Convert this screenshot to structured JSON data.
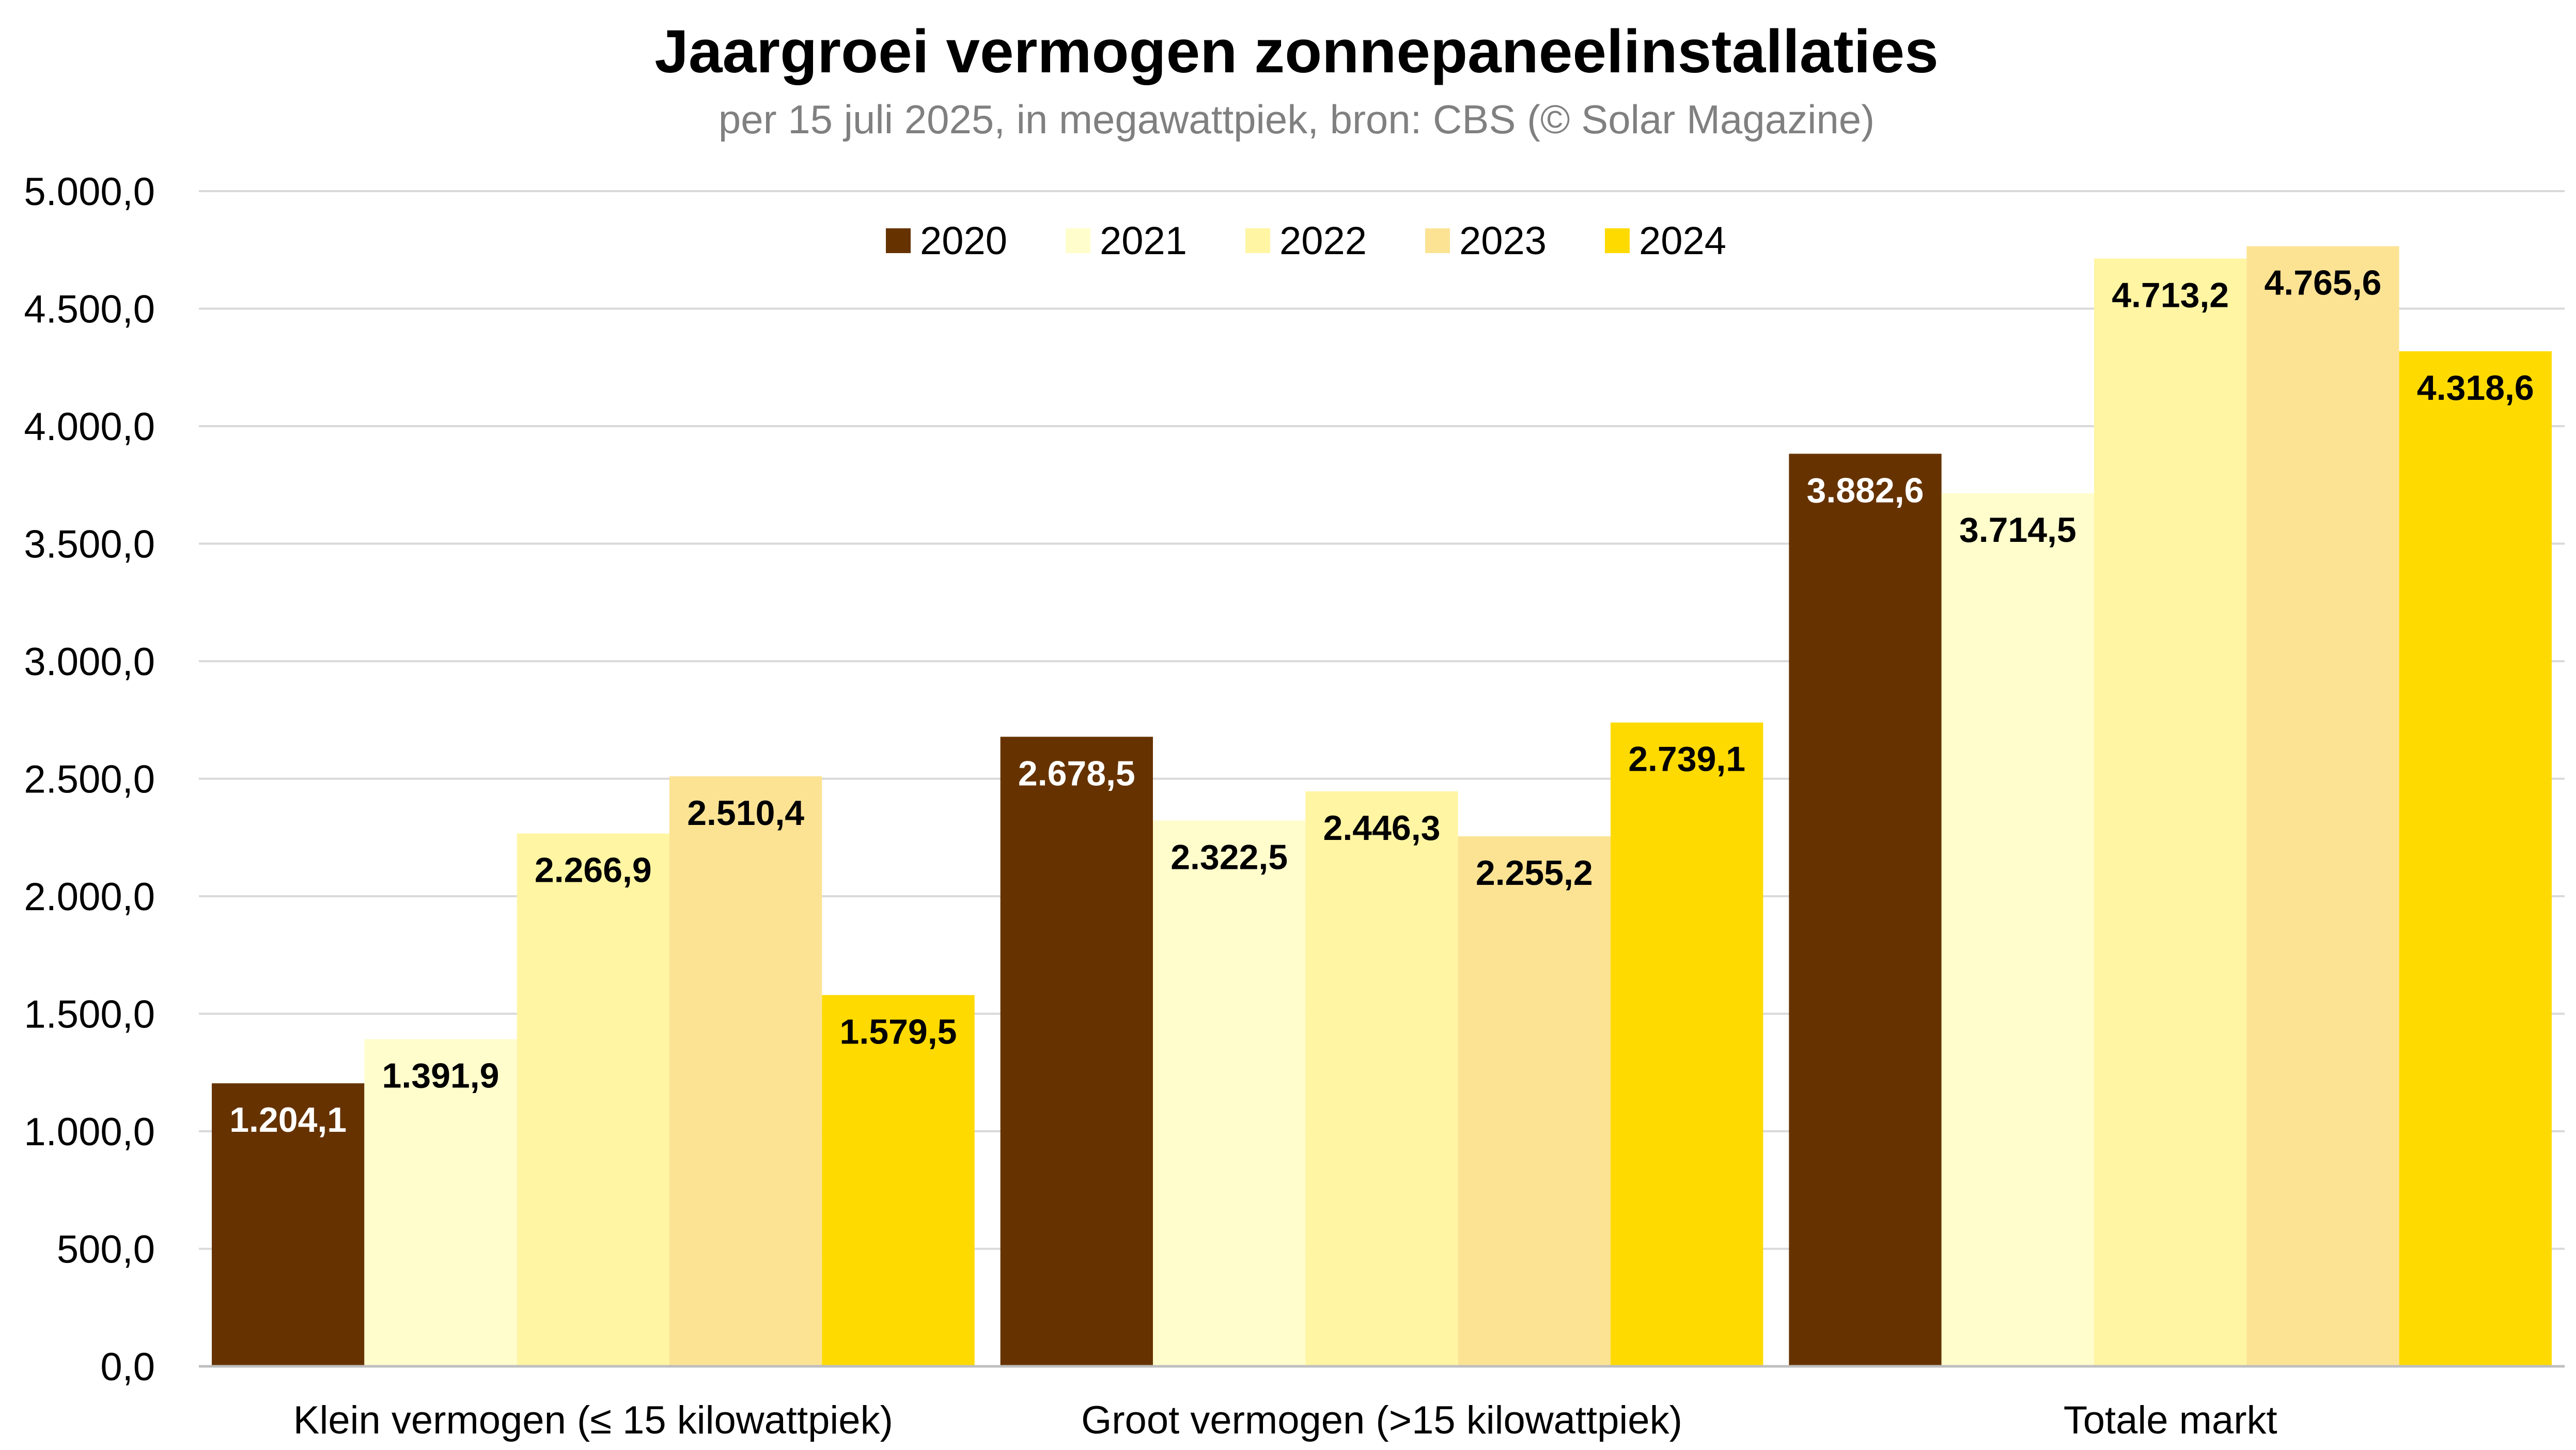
{
  "chart_data": {
    "type": "bar",
    "title": "Jaargroei vermogen zonnepaneelinstallaties",
    "subtitle": "per 15 juli 2025, in megawattpiek, bron: CBS (© Solar Magazine)",
    "categories": [
      "Klein vermogen (≤ 15 kilowattpiek)",
      "Groot vermogen (>15 kilowattpiek)",
      "Totale markt"
    ],
    "ylim": [
      0,
      5000
    ],
    "yticks": [
      0,
      500,
      1000,
      1500,
      2000,
      2500,
      3000,
      3500,
      4000,
      4500,
      5000
    ],
    "ytick_labels": [
      "0,0",
      "500,0",
      "1.000,0",
      "1.500,0",
      "2.000,0",
      "2.500,0",
      "3.000,0",
      "3.500,0",
      "4.000,0",
      "4.500,0",
      "5.000,0"
    ],
    "grid": true,
    "legend_position": "top-center",
    "series": [
      {
        "name": "2020",
        "color": "#663300",
        "label_color": "#ffffff",
        "values": [
          1204.1,
          2678.5,
          3882.6
        ],
        "labels": [
          "1.204,1",
          "2.678,5",
          "3.882,6"
        ]
      },
      {
        "name": "2021",
        "color": "#FFFDCC",
        "label_color": "#000000",
        "values": [
          1391.9,
          2322.5,
          3714.5
        ],
        "labels": [
          "1.391,9",
          "2.322,5",
          "3.714,5"
        ]
      },
      {
        "name": "2022",
        "color": "#FFF5A3",
        "label_color": "#000000",
        "values": [
          2266.9,
          2446.3,
          4713.2
        ],
        "labels": [
          "2.266,9",
          "2.446,3",
          "4.713,2"
        ]
      },
      {
        "name": "2023",
        "color": "#FCE394",
        "label_color": "#000000",
        "values": [
          2510.4,
          2255.2,
          4765.6
        ],
        "labels": [
          "2.510,4",
          "2.255,2",
          "4.765,6"
        ]
      },
      {
        "name": "2024",
        "color": "#FFDA00",
        "label_color": "#000000",
        "values": [
          1579.5,
          2739.1,
          4318.6
        ],
        "labels": [
          "1.579,5",
          "2.739,1",
          "4.318,6"
        ]
      }
    ]
  }
}
